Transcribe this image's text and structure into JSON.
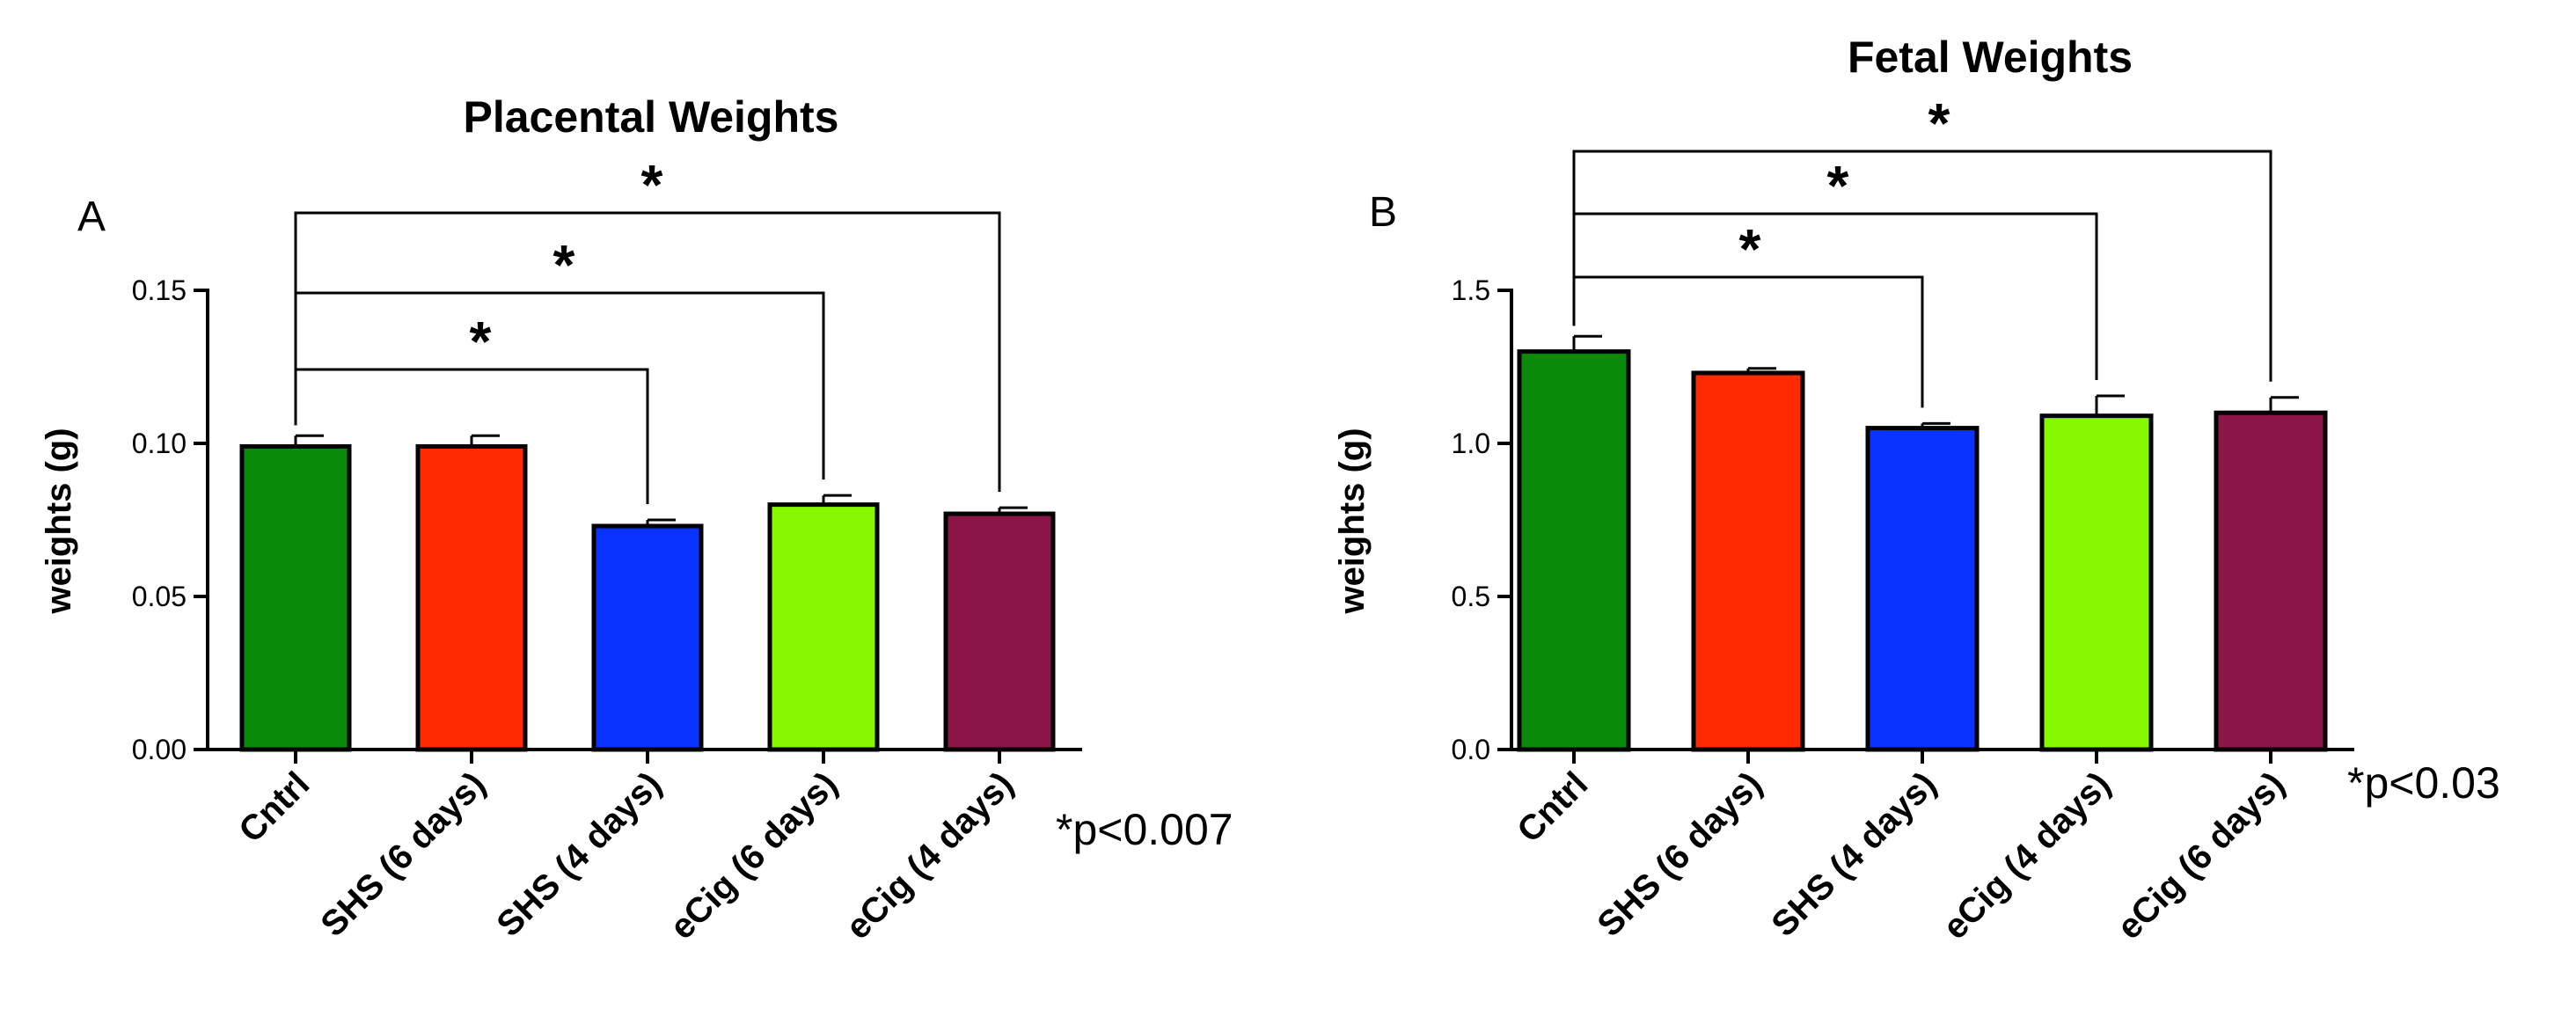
{
  "chart_data": [
    {
      "type": "bar",
      "panel_label": "A",
      "title": "Placental Weights",
      "ylabel": "weights (g)",
      "xlabel": "",
      "ylim": [
        0,
        0.15
      ],
      "yticks": [
        "0.00",
        "0.05",
        "0.10",
        "0.15"
      ],
      "categories": [
        "Cntrl",
        "SHS (6 days)",
        "SHS (4 days)",
        "eCig (6 days)",
        "eCig (4 days)"
      ],
      "values": [
        0.099,
        0.099,
        0.073,
        0.08,
        0.077
      ],
      "errors": [
        0.0035,
        0.0035,
        0.002,
        0.003,
        0.002
      ],
      "colors": [
        "#0a8a0a",
        "#ff2a00",
        "#0a33ff",
        "#88f800",
        "#8b1547"
      ],
      "significance": [
        {
          "from": 0,
          "to": 2,
          "label": "*"
        },
        {
          "from": 0,
          "to": 3,
          "label": "*"
        },
        {
          "from": 0,
          "to": 4,
          "label": "*"
        }
      ],
      "p_note": "*p<0.007"
    },
    {
      "type": "bar",
      "panel_label": "B",
      "title": "Fetal Weights",
      "ylabel": "weights (g)",
      "xlabel": "",
      "ylim": [
        0,
        1.5
      ],
      "yticks": [
        "0.0",
        "0.5",
        "1.0",
        "1.5"
      ],
      "categories": [
        "Cntrl",
        "SHS (6 days)",
        "SHS (4 days)",
        "eCig (4 days)",
        "eCig (6 days)"
      ],
      "values": [
        1.3,
        1.23,
        1.05,
        1.09,
        1.1
      ],
      "errors": [
        0.05,
        0.015,
        0.015,
        0.065,
        0.05
      ],
      "colors": [
        "#0a8a0a",
        "#ff2a00",
        "#0a33ff",
        "#88f800",
        "#8b1547"
      ],
      "significance": [
        {
          "from": 0,
          "to": 2,
          "label": "*"
        },
        {
          "from": 0,
          "to": 3,
          "label": "*"
        },
        {
          "from": 0,
          "to": 4,
          "label": "*"
        }
      ],
      "p_note": "*p<0.03"
    }
  ]
}
